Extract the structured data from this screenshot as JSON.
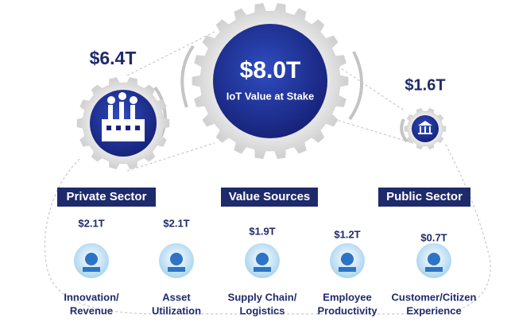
{
  "diagram": {
    "hub": {
      "value": "$8.0T",
      "label": "IoT Value at Stake"
    },
    "private": {
      "value": "$6.4T",
      "label": "Private Sector"
    },
    "public": {
      "value": "$1.6T",
      "label": "Public Sector"
    },
    "sources_label": "Value Sources",
    "items": [
      {
        "value": "$2.1T",
        "label": [
          "Innovation/",
          "Revenue"
        ]
      },
      {
        "value": "$2.1T",
        "label": [
          "Asset",
          "Utilization"
        ]
      },
      {
        "value": "$1.9T",
        "label": [
          "Supply Chain/",
          "Logistics"
        ]
      },
      {
        "value": "$1.2T",
        "label": [
          "Employee",
          "Productivity"
        ]
      },
      {
        "value": "$0.7T",
        "label": [
          "Customer/Citizen",
          "Experience"
        ]
      }
    ]
  }
}
